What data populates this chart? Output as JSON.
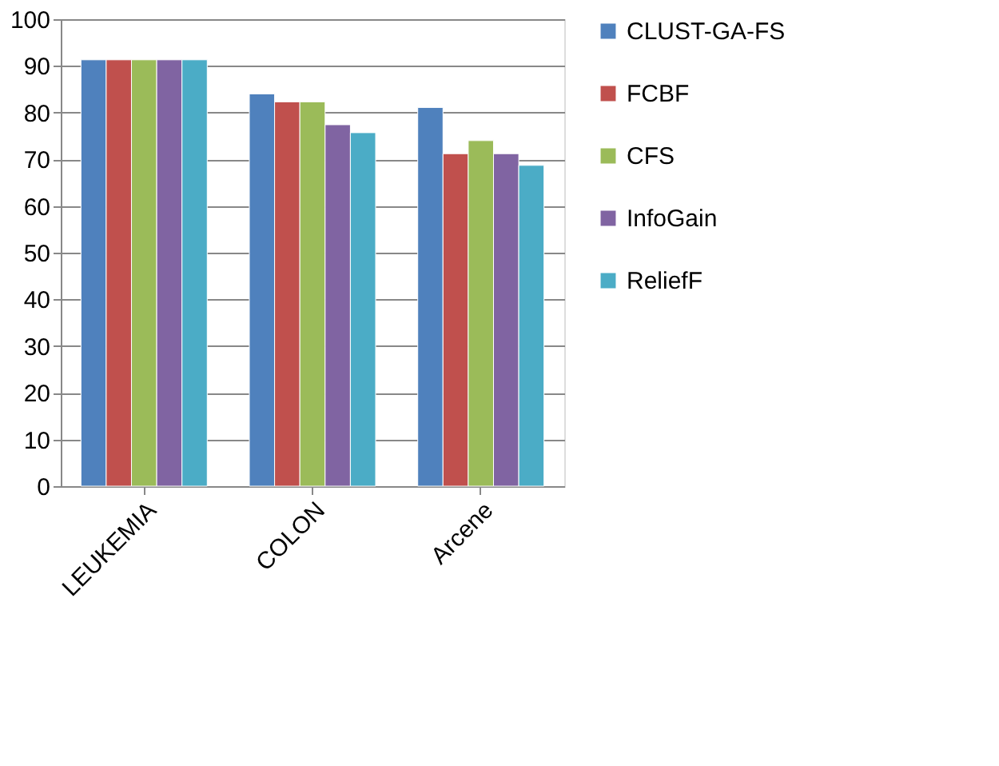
{
  "chart_data": {
    "type": "bar",
    "categories": [
      "LEUKEMIA",
      "COLON",
      "Arcene"
    ],
    "series": [
      {
        "name": "CLUST-GA-FS",
        "color": "#4f81bd",
        "values": [
          91.3,
          84.0,
          81.1
        ]
      },
      {
        "name": "FCBF",
        "color": "#c0504d",
        "values": [
          91.3,
          82.3,
          71.2
        ]
      },
      {
        "name": "CFS",
        "color": "#9bbb59",
        "values": [
          91.3,
          82.3,
          74.0
        ]
      },
      {
        "name": "InfoGain",
        "color": "#8064a2",
        "values": [
          91.3,
          77.4,
          71.2
        ]
      },
      {
        "name": "ReliefF",
        "color": "#4bacc6",
        "values": [
          91.3,
          75.7,
          68.7
        ]
      }
    ],
    "ylim": [
      0,
      100
    ],
    "yticks": [
      0,
      10,
      20,
      30,
      40,
      50,
      60,
      70,
      80,
      90,
      100
    ],
    "grid": "y",
    "legend": "right"
  }
}
